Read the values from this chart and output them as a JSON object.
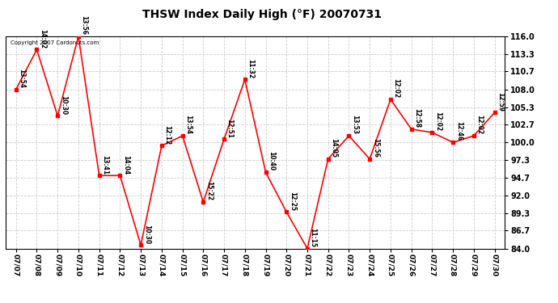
{
  "title": "THSW Index Daily High (°F) 20070731",
  "copyright": "Copyright 2007 Cardonuts.com",
  "background_color": "#ffffff",
  "plot_bg_color": "#ffffff",
  "grid_color": "#cccccc",
  "line_color": "#ff0000",
  "marker_color": "#ff0000",
  "text_color": "#000000",
  "ylim": [
    84.0,
    116.0
  ],
  "yticks": [
    84.0,
    86.7,
    89.3,
    92.0,
    94.7,
    97.3,
    100.0,
    102.7,
    105.3,
    108.0,
    110.7,
    113.3,
    116.0
  ],
  "dates": [
    "07/07",
    "07/08",
    "07/09",
    "07/10",
    "07/11",
    "07/12",
    "07/13",
    "07/14",
    "07/15",
    "07/16",
    "07/17",
    "07/18",
    "07/19",
    "07/20",
    "07/21",
    "07/22",
    "07/23",
    "07/24",
    "07/25",
    "07/26",
    "07/27",
    "07/28",
    "07/29",
    "07/30"
  ],
  "values": [
    108.0,
    114.0,
    104.0,
    116.0,
    95.0,
    95.0,
    84.5,
    99.5,
    101.0,
    91.0,
    100.5,
    109.5,
    95.5,
    89.5,
    84.0,
    97.5,
    101.0,
    97.5,
    106.5,
    102.0,
    101.5,
    100.0,
    101.0,
    104.5
  ],
  "labels": [
    "13:54",
    "14:02",
    "10:30",
    "13:56",
    "13:41",
    "14:04",
    "10:30",
    "12:12",
    "13:54",
    "15:22",
    "12:51",
    "11:32",
    "10:40",
    "12:25",
    "11:15",
    "14:05",
    "13:53",
    "15:56",
    "12:02",
    "12:58",
    "12:02",
    "12:46",
    "12:02",
    "12:59"
  ],
  "figsize": [
    6.9,
    3.75
  ],
  "dpi": 100
}
